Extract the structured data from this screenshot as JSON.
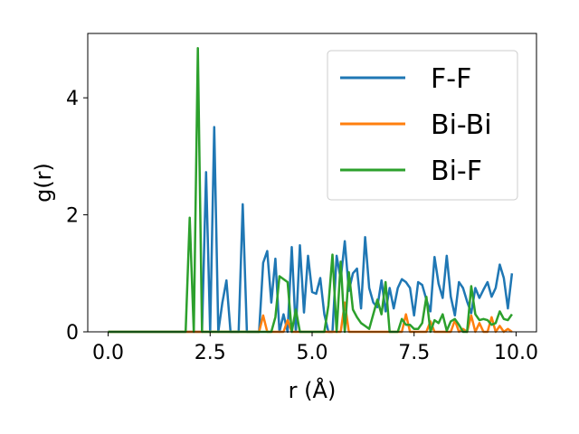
{
  "chart_data": {
    "type": "line",
    "xlabel": "r (Å)",
    "ylabel": "g(r)",
    "xlim": [
      -0.5,
      10.5
    ],
    "ylim": [
      0,
      5.1
    ],
    "xticks": [
      "0.0",
      "2.5",
      "5.0",
      "7.5",
      "10.0"
    ],
    "yticks": [
      "0",
      "2",
      "4"
    ],
    "grid": false,
    "legend_position": "upper right",
    "series": [
      {
        "name": "F-F",
        "color": "#1f77b4",
        "x": [
          0.0,
          1.0,
          2.0,
          2.1,
          2.2,
          2.3,
          2.4,
          2.5,
          2.6,
          2.7,
          2.8,
          2.9,
          3.0,
          3.1,
          3.2,
          3.3,
          3.4,
          3.5,
          3.6,
          3.7,
          3.8,
          3.9,
          4.0,
          4.1,
          4.2,
          4.3,
          4.4,
          4.5,
          4.6,
          4.7,
          4.8,
          4.9,
          5.0,
          5.1,
          5.2,
          5.3,
          5.4,
          5.5,
          5.6,
          5.7,
          5.8,
          5.9,
          6.0,
          6.1,
          6.2,
          6.3,
          6.4,
          6.5,
          6.6,
          6.7,
          6.8,
          6.9,
          7.0,
          7.1,
          7.2,
          7.3,
          7.4,
          7.5,
          7.6,
          7.7,
          7.8,
          7.9,
          8.0,
          8.1,
          8.2,
          8.3,
          8.4,
          8.5,
          8.6,
          8.7,
          8.8,
          8.9,
          9.0,
          9.1,
          9.2,
          9.3,
          9.4,
          9.5,
          9.6,
          9.7,
          9.8,
          9.9
        ],
        "y": [
          0,
          0,
          0,
          0,
          0,
          0,
          2.73,
          0,
          3.5,
          0,
          0.5,
          0.88,
          0,
          0,
          0,
          2.18,
          0,
          0,
          0,
          0,
          1.18,
          1.38,
          0.5,
          1.25,
          0,
          0.3,
          0,
          1.45,
          0,
          1.48,
          0.33,
          1.3,
          0.68,
          0.65,
          0.92,
          0.3,
          0,
          0,
          1.3,
          0.9,
          1.55,
          0.7,
          1.0,
          1.08,
          0.4,
          1.62,
          0.75,
          0.5,
          0.42,
          0.88,
          0.35,
          0.75,
          0.4,
          0.75,
          0.9,
          0.85,
          0.75,
          0.28,
          0.85,
          0.8,
          0.55,
          0.35,
          1.28,
          0.82,
          0.58,
          1.3,
          0.6,
          0.28,
          0.85,
          0.75,
          0.52,
          0.32,
          0.75,
          0.58,
          0.72,
          0.85,
          0.6,
          0.75,
          1.15,
          0.92,
          0.4,
          1.0
        ]
      },
      {
        "name": "Bi-Bi",
        "color": "#ff7f0e",
        "x": [
          0.0,
          3.7,
          3.8,
          3.9,
          4.0,
          4.1,
          4.2,
          4.3,
          4.4,
          4.5,
          4.6,
          4.7,
          5.5,
          5.6,
          5.7,
          5.8,
          5.9,
          6.0,
          7.2,
          7.3,
          7.4,
          7.5,
          7.6,
          7.7,
          7.8,
          7.9,
          8.0,
          8.1,
          8.4,
          8.5,
          8.6,
          8.7,
          8.8,
          8.9,
          9.0,
          9.1,
          9.2,
          9.3,
          9.4,
          9.5,
          9.6,
          9.7,
          9.8,
          9.9
        ],
        "y": [
          0,
          0,
          0.28,
          0,
          0,
          0,
          0,
          0,
          0.2,
          0,
          0,
          0,
          0,
          0,
          0,
          0.5,
          0,
          0,
          0,
          0.3,
          0,
          0,
          0,
          0,
          0,
          0.18,
          0,
          0,
          0,
          0.2,
          0,
          0.05,
          0,
          0.28,
          0,
          0.15,
          0,
          0,
          0.25,
          0,
          0.1,
          0,
          0.05,
          0
        ]
      },
      {
        "name": "Bi-F",
        "color": "#2ca02c",
        "x": [
          0.0,
          1.0,
          1.9,
          2.0,
          2.1,
          2.2,
          2.3,
          2.4,
          2.5,
          2.6,
          3.8,
          3.9,
          4.0,
          4.1,
          4.2,
          4.3,
          4.4,
          4.5,
          4.6,
          4.7,
          4.8,
          4.9,
          5.0,
          5.1,
          5.2,
          5.3,
          5.4,
          5.5,
          5.6,
          5.7,
          5.8,
          5.9,
          6.0,
          6.1,
          6.2,
          6.3,
          6.4,
          6.5,
          6.6,
          6.7,
          6.8,
          6.9,
          7.0,
          7.1,
          7.2,
          7.3,
          7.4,
          7.5,
          7.6,
          7.7,
          7.8,
          7.9,
          8.0,
          8.1,
          8.2,
          8.3,
          8.4,
          8.5,
          8.6,
          8.7,
          8.8,
          8.9,
          9.0,
          9.1,
          9.2,
          9.3,
          9.4,
          9.5,
          9.6,
          9.7,
          9.8,
          9.9
        ],
        "y": [
          0,
          0,
          0,
          1.95,
          0,
          4.85,
          0,
          0,
          0,
          0,
          0,
          0,
          0,
          0.25,
          0.95,
          0.9,
          0.85,
          0,
          0.38,
          0,
          0,
          0,
          0,
          0,
          0,
          0,
          0.45,
          1.32,
          0,
          1.2,
          0,
          1.02,
          0.38,
          0.25,
          0.15,
          0.1,
          0.05,
          0.3,
          0.55,
          0.3,
          0.85,
          0,
          0,
          0,
          0.22,
          0.12,
          0.12,
          0.05,
          0.05,
          0.15,
          0.6,
          0,
          0.2,
          0.15,
          0.3,
          0.02,
          0.18,
          0.22,
          0.12,
          0,
          0,
          0.78,
          0.3,
          0.2,
          0.22,
          0.2,
          0.12,
          0.15,
          0.35,
          0.22,
          0.2,
          0.3
        ]
      }
    ]
  }
}
